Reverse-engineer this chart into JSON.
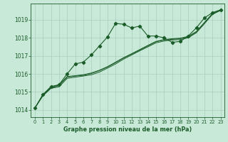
{
  "bg_color": "#c8e8d8",
  "line_color": "#1a5c28",
  "grid_color": "#a8cfc0",
  "xlabel": "Graphe pression niveau de la mer (hPa)",
  "xlim": [
    -0.5,
    23.5
  ],
  "ylim": [
    1013.6,
    1019.9
  ],
  "yticks": [
    1014,
    1015,
    1016,
    1017,
    1018,
    1019
  ],
  "xticks": [
    0,
    1,
    2,
    3,
    4,
    5,
    6,
    7,
    8,
    9,
    10,
    11,
    12,
    13,
    14,
    15,
    16,
    17,
    18,
    19,
    20,
    21,
    22,
    23
  ],
  "series": [
    {
      "y": [
        1014.1,
        1014.85,
        1015.3,
        1015.4,
        1016.0,
        1016.55,
        1016.65,
        1017.05,
        1017.55,
        1018.05,
        1018.8,
        1018.75,
        1018.55,
        1018.65,
        1018.1,
        1018.1,
        1018.0,
        1017.75,
        1017.8,
        1018.1,
        1018.55,
        1019.1,
        1019.4,
        1019.55
      ],
      "marker": true,
      "lw": 0.8
    },
    {
      "y": [
        1014.1,
        1014.78,
        1015.2,
        1015.28,
        1015.75,
        1015.82,
        1015.88,
        1015.95,
        1016.1,
        1016.32,
        1016.55,
        1016.82,
        1017.05,
        1017.28,
        1017.5,
        1017.72,
        1017.82,
        1017.88,
        1017.9,
        1018.0,
        1018.28,
        1018.78,
        1019.3,
        1019.52
      ],
      "marker": false,
      "lw": 0.7
    },
    {
      "y": [
        1014.1,
        1014.82,
        1015.22,
        1015.35,
        1015.82,
        1015.88,
        1015.92,
        1016.02,
        1016.18,
        1016.38,
        1016.62,
        1016.88,
        1017.1,
        1017.32,
        1017.55,
        1017.78,
        1017.88,
        1017.92,
        1017.95,
        1018.05,
        1018.32,
        1018.82,
        1019.32,
        1019.52
      ],
      "marker": false,
      "lw": 0.7
    },
    {
      "y": [
        1014.1,
        1014.85,
        1015.25,
        1015.38,
        1015.85,
        1015.9,
        1015.95,
        1016.05,
        1016.2,
        1016.4,
        1016.65,
        1016.9,
        1017.12,
        1017.35,
        1017.58,
        1017.8,
        1017.9,
        1017.95,
        1017.98,
        1018.08,
        1018.35,
        1018.85,
        1019.35,
        1019.55
      ],
      "marker": false,
      "lw": 0.7
    }
  ]
}
